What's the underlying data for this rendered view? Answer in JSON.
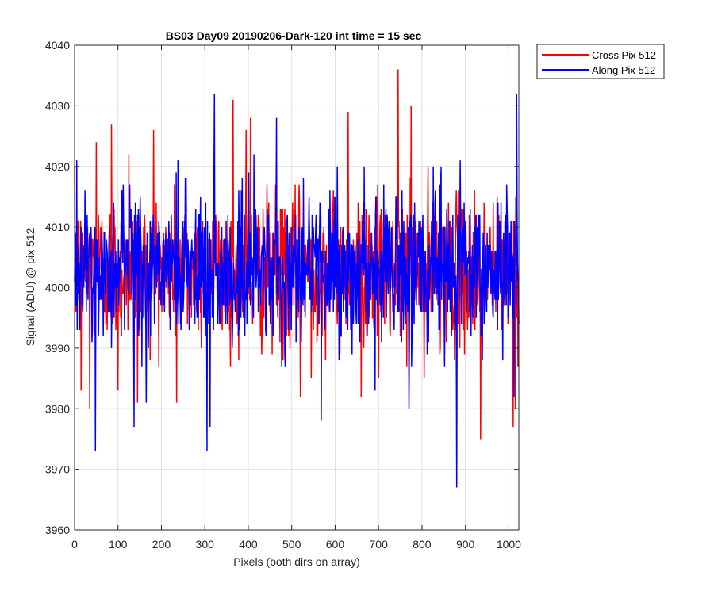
{
  "chart_data": {
    "type": "line",
    "title": "BS03 Day09 20190206-Dark-120 int time = 15 sec",
    "xlabel": "Pixels (both dirs on array)",
    "ylabel": "Signal (ADU) @ pix 512",
    "xlim": [
      0,
      1023
    ],
    "ylim": [
      3960,
      4040
    ],
    "xticks": [
      "0",
      "100",
      "200",
      "300",
      "400",
      "500",
      "600",
      "700",
      "800",
      "900",
      "1000"
    ],
    "yticks": [
      "3960",
      "3970",
      "3980",
      "3990",
      "4000",
      "4010",
      "4020",
      "4030",
      "4040"
    ],
    "xtick_values": [
      0,
      100,
      200,
      300,
      400,
      500,
      600,
      700,
      800,
      900,
      1000
    ],
    "ytick_values": [
      3960,
      3970,
      3980,
      3990,
      4000,
      4010,
      4020,
      4030,
      4040
    ],
    "grid": true,
    "legend_position": "outside-top-right",
    "series": [
      {
        "name": "Cross Pix 512",
        "color": "#ff0000",
        "mean": 4003,
        "noise_std": 6,
        "points_count": 1024,
        "extremes": [
          [
            15,
            3983
          ],
          [
            35,
            3980
          ],
          [
            50,
            4024
          ],
          [
            85,
            4027
          ],
          [
            100,
            3983
          ],
          [
            125,
            4022
          ],
          [
            145,
            3981
          ],
          [
            182,
            4026
          ],
          [
            235,
            3981
          ],
          [
            305,
            3985
          ],
          [
            365,
            4031
          ],
          [
            395,
            4026
          ],
          [
            405,
            4028
          ],
          [
            455,
            3989
          ],
          [
            520,
            3982
          ],
          [
            545,
            3985
          ],
          [
            630,
            4029
          ],
          [
            660,
            3982
          ],
          [
            700,
            3985
          ],
          [
            745,
            4036
          ],
          [
            775,
            4030
          ],
          [
            805,
            3985
          ],
          [
            935,
            3975
          ],
          [
            1010,
            3977
          ],
          [
            1015,
            3980
          ]
        ]
      },
      {
        "name": "Along Pix 512",
        "color": "#0000ff",
        "mean": 4003,
        "noise_std": 6,
        "points_count": 1024,
        "extremes": [
          [
            5,
            4021
          ],
          [
            48,
            3973
          ],
          [
            137,
            3977
          ],
          [
            165,
            3981
          ],
          [
            238,
            4021
          ],
          [
            305,
            3973
          ],
          [
            312,
            3977
          ],
          [
            322,
            4032
          ],
          [
            413,
            4022
          ],
          [
            465,
            4028
          ],
          [
            568,
            3978
          ],
          [
            692,
            3983
          ],
          [
            770,
            3980
          ],
          [
            880,
            3967
          ],
          [
            888,
            4021
          ],
          [
            1012,
            3982
          ],
          [
            1018,
            4032
          ]
        ]
      }
    ]
  }
}
